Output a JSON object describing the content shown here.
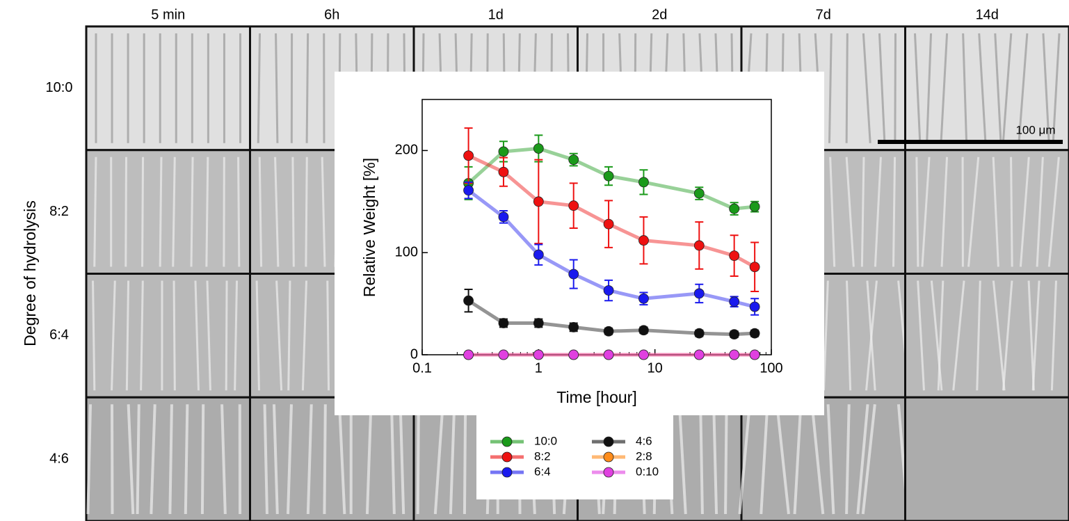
{
  "figure": {
    "columns": [
      "5 min",
      "6h",
      "1d",
      "2d",
      "7d",
      "14d"
    ],
    "rows": [
      "10:0",
      "8:2",
      "6:4",
      "4:6"
    ],
    "row_axis_label": "Degree of hydrolysis",
    "scale_bar": "100 μm"
  },
  "chart_data": {
    "type": "line",
    "x_label": "Time [hour]",
    "y_label": "Relative Weight [%]",
    "xscale": "log",
    "x": [
      0.25,
      0.5,
      1,
      2,
      4,
      8,
      24,
      48,
      72
    ],
    "xlim": [
      0.1,
      100
    ],
    "xticks": [
      0.1,
      1,
      10,
      100
    ],
    "ylim": [
      0,
      250
    ],
    "yticks": [
      0,
      100,
      200
    ],
    "series": [
      {
        "name": "10:0",
        "color": "#1a9a1a",
        "values": [
          168,
          199,
          202,
          191,
          175,
          169,
          158,
          143,
          145
        ],
        "errors": [
          16,
          10,
          13,
          6,
          9,
          12,
          6,
          6,
          5
        ]
      },
      {
        "name": "8:2",
        "color": "#ee1111",
        "values": [
          195,
          179,
          150,
          146,
          128,
          112,
          107,
          97,
          86
        ],
        "errors": [
          27,
          14,
          41,
          22,
          23,
          23,
          23,
          20,
          24
        ]
      },
      {
        "name": "6:4",
        "color": "#1a1aee",
        "values": [
          161,
          135,
          98,
          79,
          63,
          55,
          60,
          52,
          47
        ],
        "errors": [
          8,
          6,
          10,
          14,
          10,
          6,
          9,
          5,
          8
        ]
      },
      {
        "name": "4:6",
        "color": "#111111",
        "values": [
          53,
          31,
          31,
          27,
          23,
          24,
          21,
          20,
          21
        ],
        "errors": [
          11,
          4,
          4,
          4,
          3,
          3,
          3,
          3,
          3
        ]
      },
      {
        "name": "2:8",
        "color": "#ff8c1a",
        "values": [
          0,
          0,
          0,
          0,
          0,
          0,
          0,
          0,
          0
        ],
        "errors": [
          0,
          0,
          0,
          0,
          0,
          0,
          0,
          0,
          0
        ]
      },
      {
        "name": "0:10",
        "color": "#e040e0",
        "values": [
          0,
          0,
          0,
          0,
          0,
          0,
          0,
          0,
          0
        ],
        "errors": [
          0,
          0,
          0,
          0,
          0,
          0,
          0,
          0,
          0
        ]
      }
    ]
  }
}
